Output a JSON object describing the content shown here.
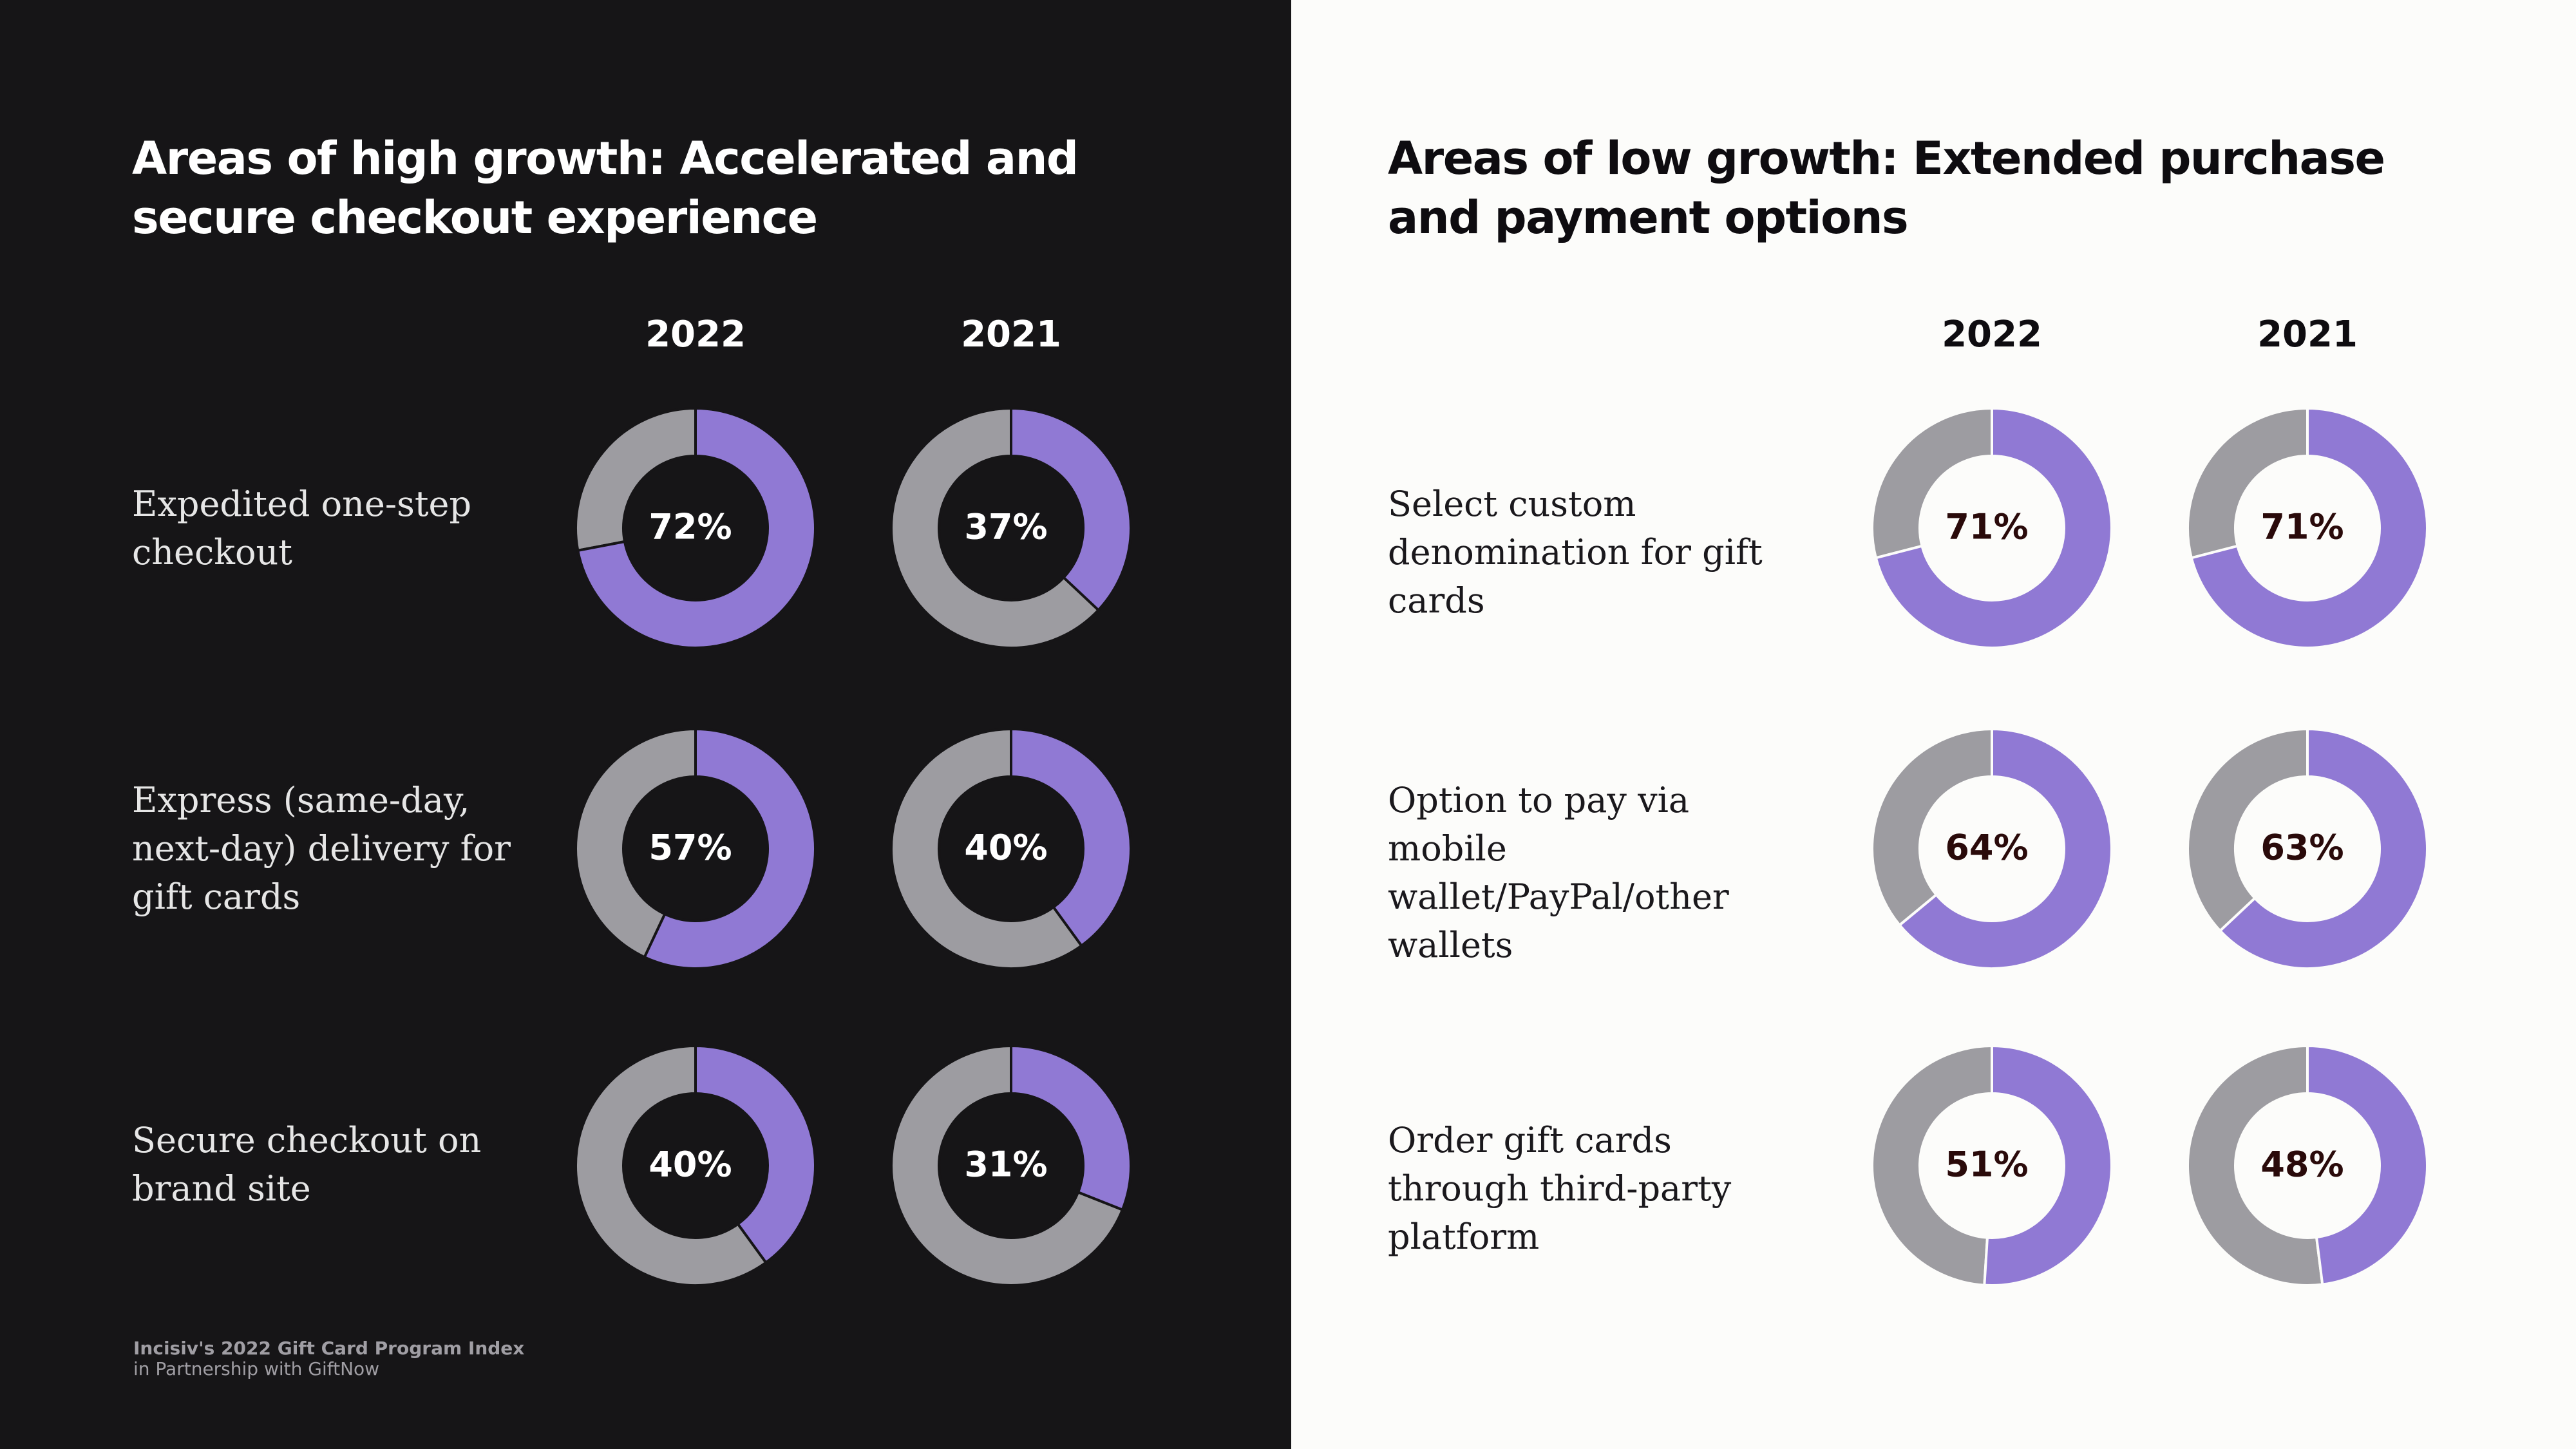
{
  "colors": {
    "accent": "#9079d4",
    "remainder": "#9d9ca1",
    "left_bg": "#161517",
    "right_bg": "#fcfcfa",
    "left_pct_text": "#ffffff",
    "right_pct_text": "#2a0a0a"
  },
  "footer": {
    "line1": "Incisiv's 2022 Gift Card Program Index",
    "line2": "in Partnership with GiftNow"
  },
  "chart_data": [
    {
      "type": "pie",
      "title": "Areas of high growth: Accelerated and secure checkout experience",
      "years": [
        "2022",
        "2021"
      ],
      "categories": [
        "Expedited one-step checkout",
        "Express (same-day, next-day) delivery for gift cards",
        "Secure checkout on brand site"
      ],
      "series": [
        {
          "name": "2022",
          "values": [
            72,
            57,
            40
          ]
        },
        {
          "name": "2021",
          "values": [
            37,
            40,
            31
          ]
        }
      ],
      "value_labels": [
        [
          "72%",
          "37%"
        ],
        [
          "57%",
          "40%"
        ],
        [
          "40%",
          "31%"
        ]
      ]
    },
    {
      "type": "pie",
      "title": "Areas of low growth: Extended purchase and payment options",
      "years": [
        "2022",
        "2021"
      ],
      "categories": [
        "Select custom denomination for gift cards",
        "Option to pay via mobile wallet/PayPal/other wallets",
        "Order gift cards through third-party platform"
      ],
      "series": [
        {
          "name": "2022",
          "values": [
            71,
            64,
            51
          ]
        },
        {
          "name": "2021",
          "values": [
            71,
            63,
            48
          ]
        }
      ],
      "value_labels": [
        [
          "71%",
          "71%"
        ],
        [
          "64%",
          "63%"
        ],
        [
          "51%",
          "48%"
        ]
      ]
    }
  ]
}
